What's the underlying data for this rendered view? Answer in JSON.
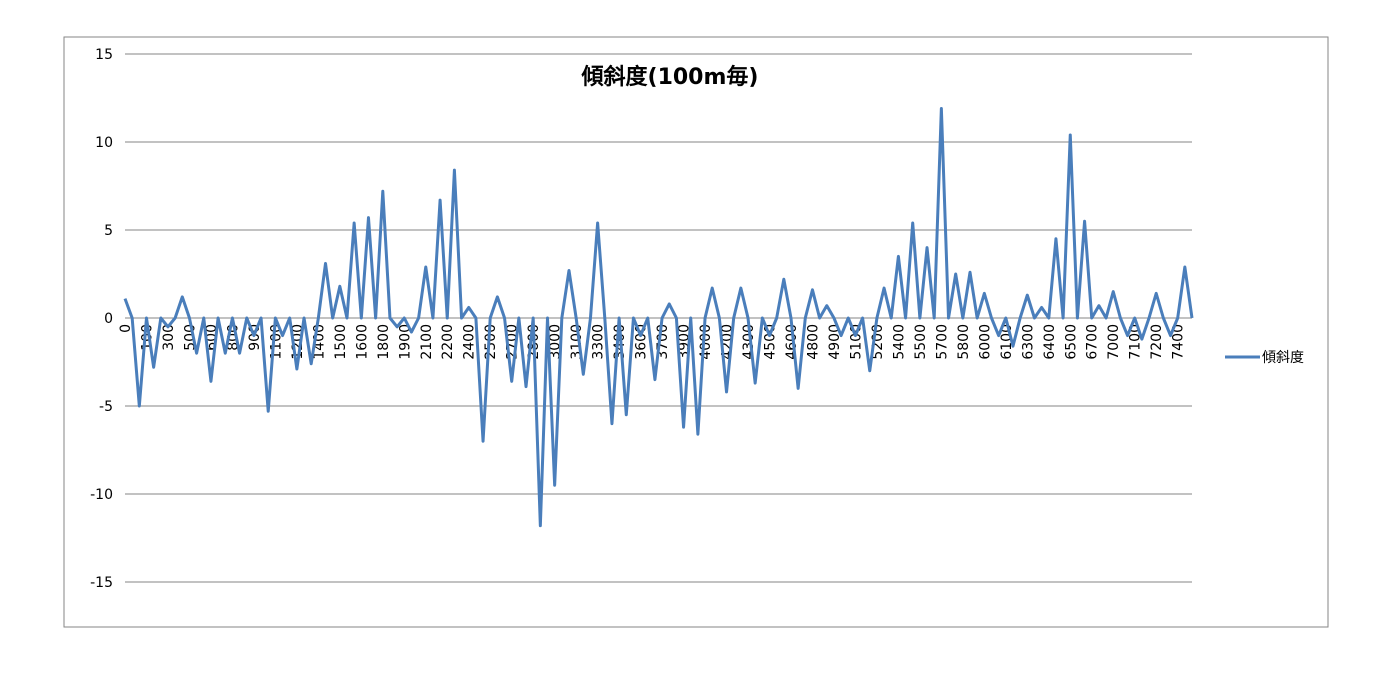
{
  "chart_data": {
    "type": "line",
    "title": "傾斜度(100m毎)",
    "categories": [
      "0",
      null,
      null,
      "100",
      null,
      null,
      "300",
      null,
      null,
      "500",
      null,
      null,
      "600",
      null,
      null,
      "800",
      null,
      null,
      "900",
      null,
      null,
      "1100",
      null,
      null,
      "1200",
      null,
      null,
      "1400",
      null,
      null,
      "1500",
      null,
      null,
      "1600",
      null,
      null,
      "1800",
      null,
      null,
      "1900",
      null,
      null,
      "2100",
      null,
      null,
      "2200",
      null,
      null,
      "2400",
      null,
      null,
      "2500",
      null,
      null,
      "2700",
      null,
      null,
      "2800",
      null,
      null,
      "3000",
      null,
      null,
      "3100",
      null,
      null,
      "3300",
      null,
      null,
      "3400",
      null,
      null,
      "3600",
      null,
      null,
      "3700",
      null,
      null,
      "3900",
      null,
      null,
      "4000",
      null,
      null,
      "4200",
      null,
      null,
      "4300",
      null,
      null,
      "4500",
      null,
      null,
      "4600",
      null,
      null,
      "4800",
      null,
      null,
      "4900",
      null,
      null,
      "5100",
      null,
      null,
      "5200",
      null,
      null,
      "5400",
      null,
      null,
      "5500",
      null,
      null,
      "5700",
      null,
      null,
      "5800",
      null,
      null,
      "6000",
      null,
      null,
      "6100",
      null,
      null,
      "6300",
      null,
      null,
      "6400",
      null,
      null,
      "6500",
      null,
      null,
      "6700",
      null,
      null,
      "7000",
      null,
      null,
      "7100",
      null,
      null,
      "7200",
      null,
      null,
      "7400",
      null,
      null
    ],
    "series": [
      {
        "name": "傾斜度",
        "color": "#4a7ebb",
        "values": [
          1.1,
          0,
          -5,
          0,
          -2.8,
          0,
          -0.5,
          0,
          1.2,
          0,
          -2,
          0,
          -3.6,
          0,
          -2,
          0,
          -2,
          0,
          -1,
          0,
          -5.3,
          0,
          -1,
          0,
          -2.9,
          0,
          -2.6,
          0,
          3.1,
          0,
          1.8,
          0,
          5.4,
          0,
          5.7,
          0,
          7.2,
          0,
          -0.5,
          0,
          -0.8,
          0,
          2.9,
          0,
          6.7,
          0,
          8.4,
          0,
          0.6,
          0,
          -7,
          0,
          1.2,
          0,
          -3.6,
          0,
          -3.9,
          0,
          -11.8,
          0,
          -9.5,
          0,
          2.7,
          0,
          -3.2,
          0,
          5.4,
          0,
          -6,
          0,
          -5.5,
          0,
          -1,
          0,
          -3.5,
          0,
          0.8,
          0,
          -6.2,
          0,
          -6.6,
          0,
          1.7,
          0,
          -4.2,
          0,
          1.7,
          0,
          -3.7,
          0,
          -1,
          0,
          2.2,
          0,
          -4,
          0,
          1.6,
          0,
          0.7,
          0,
          -1,
          0,
          -1,
          0,
          -3,
          0,
          1.7,
          0,
          3.5,
          0,
          5.4,
          0,
          4,
          0,
          11.9,
          0,
          2.5,
          0,
          2.6,
          0,
          1.4,
          0,
          -1,
          0,
          -1.6,
          0,
          1.3,
          0,
          0.6,
          0,
          4.5,
          0,
          10.4,
          0,
          5.5,
          0,
          0.7,
          0,
          1.5,
          0,
          -1,
          0,
          -1.2,
          0,
          1.4,
          0,
          -1,
          0,
          2.9,
          0
        ]
      }
    ],
    "ylim": [
      -15,
      15
    ],
    "yticks": [
      -15,
      -10,
      -5,
      0,
      5,
      10,
      15
    ],
    "grid": true,
    "legend": "right"
  }
}
